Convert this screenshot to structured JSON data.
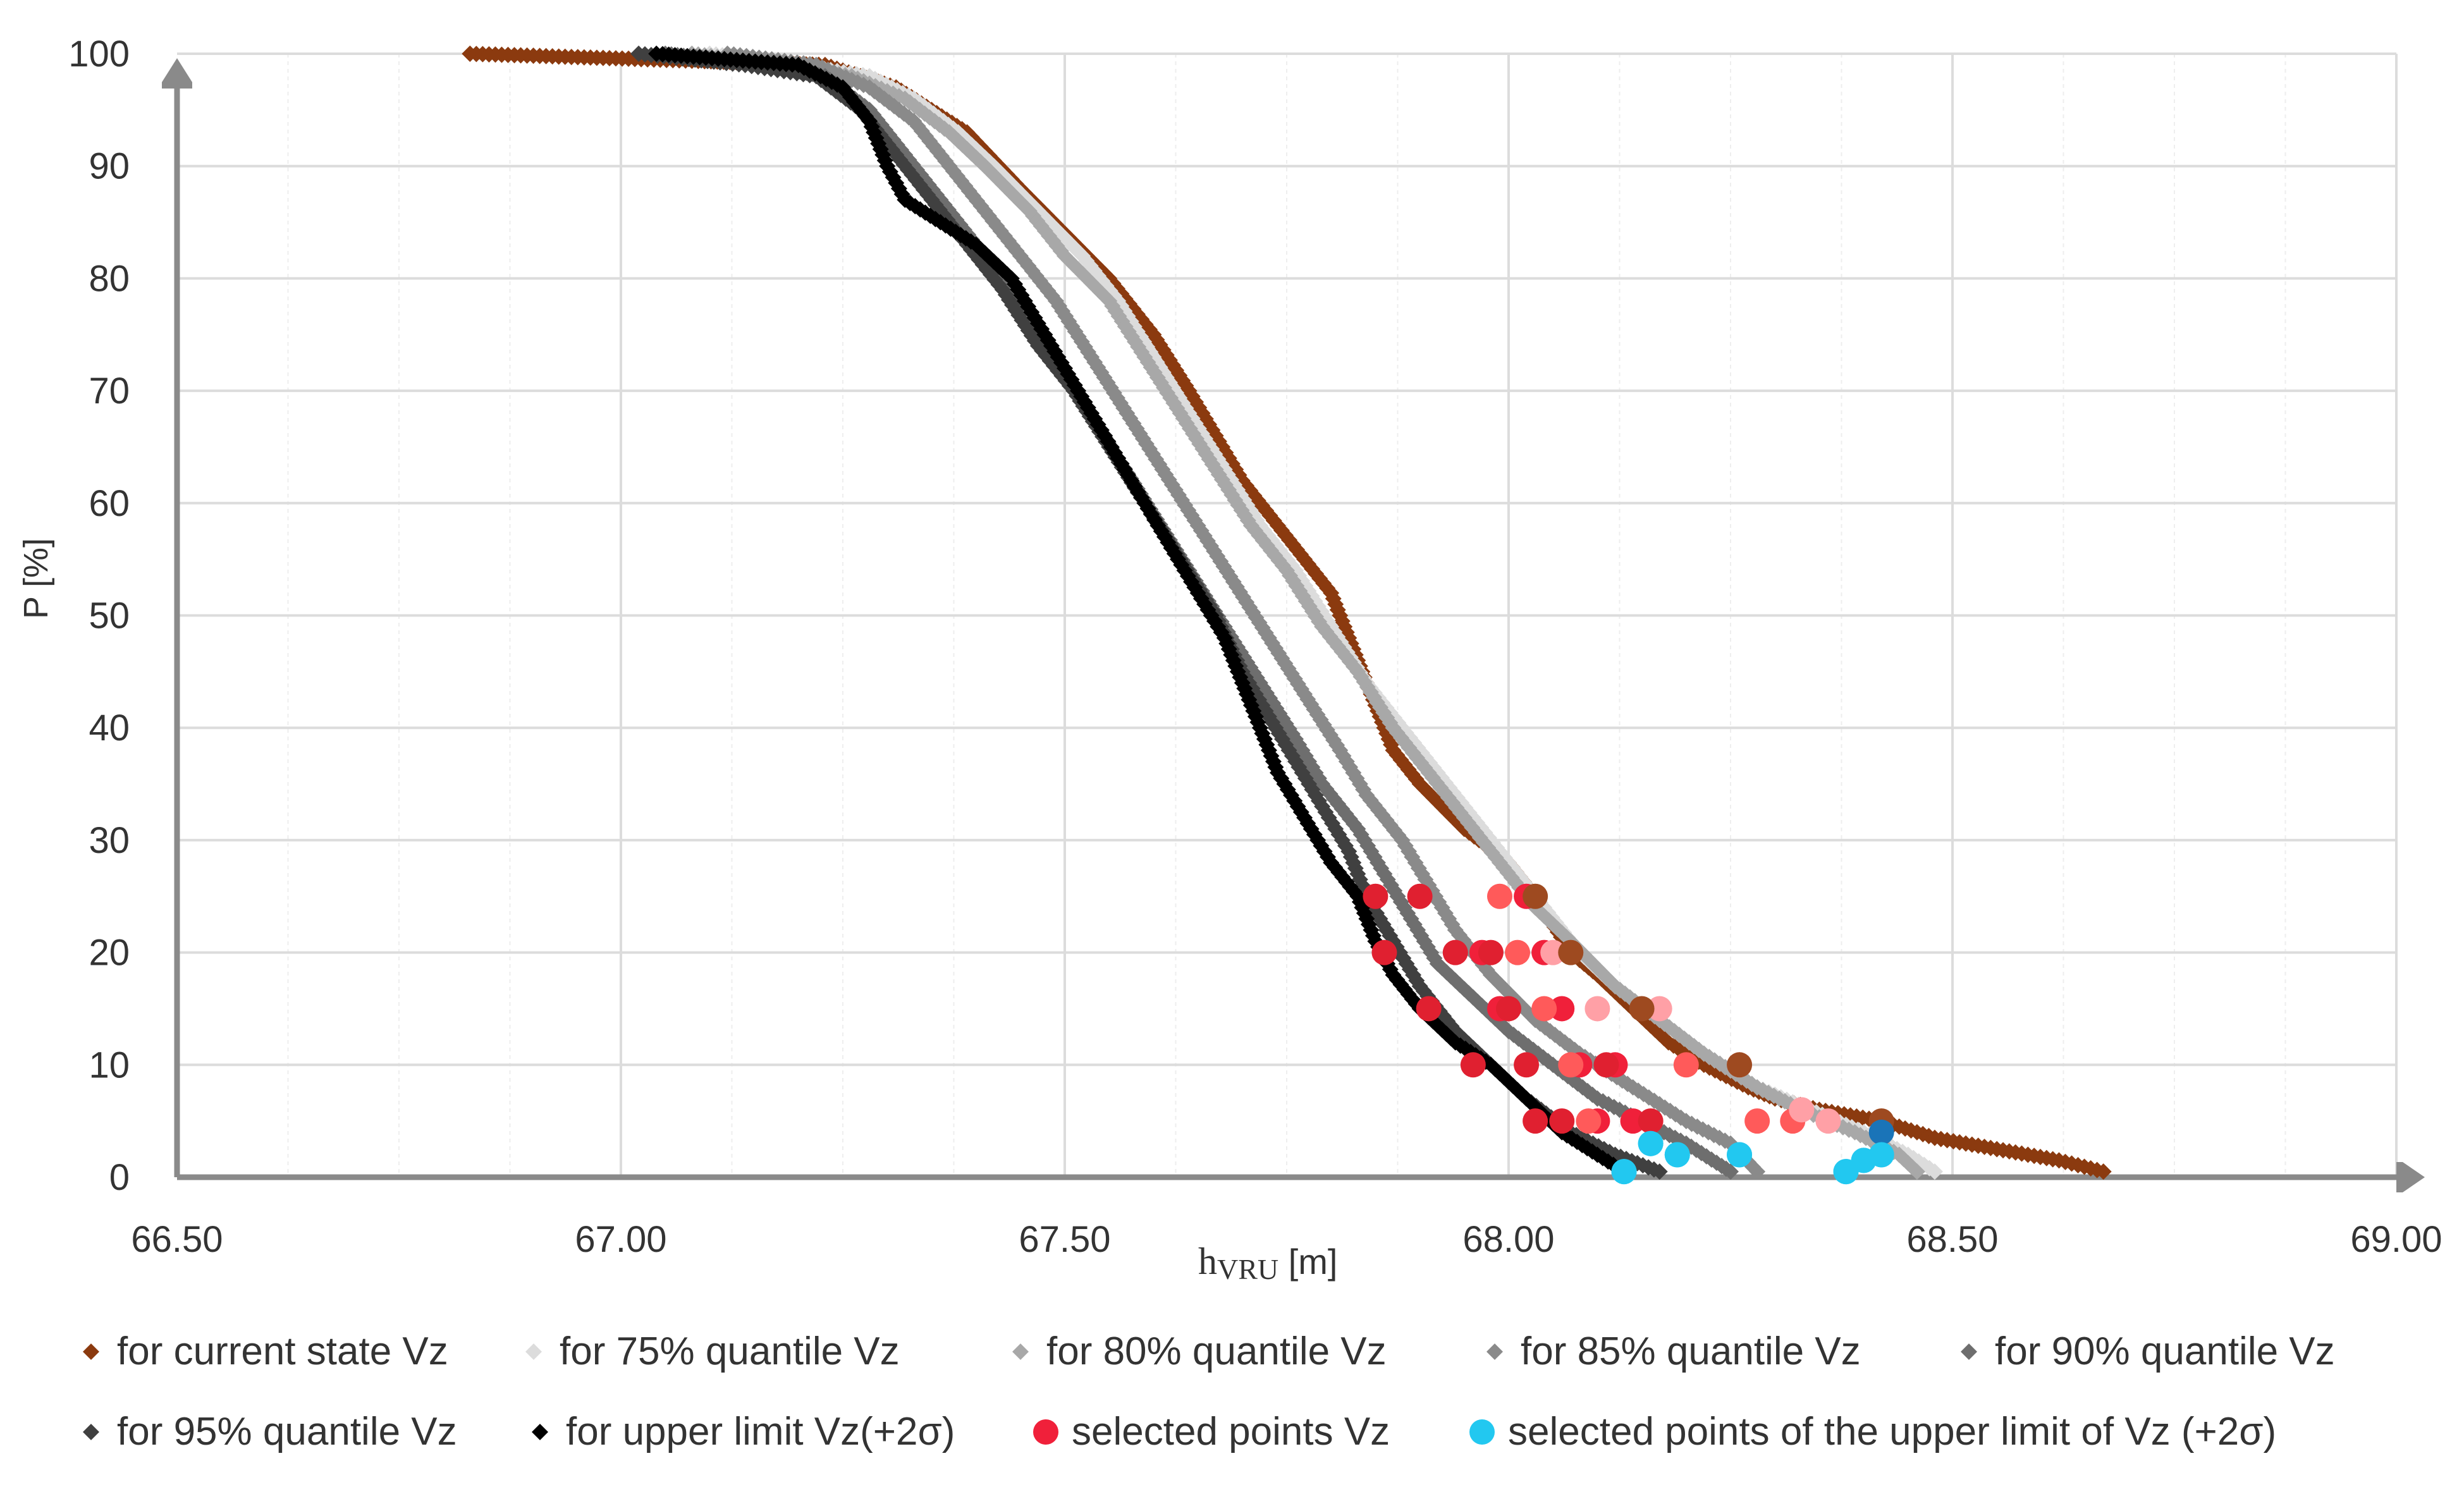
{
  "chart_data": {
    "type": "scatter",
    "title": "",
    "xlabel_main": "h",
    "xlabel_sub": "VRU",
    "xlabel_unit": " [m]",
    "ylabel": "P [%]",
    "xlim": [
      66.5,
      69.0
    ],
    "ylim": [
      0,
      100
    ],
    "x_ticks": [
      66.5,
      67.0,
      67.5,
      68.0,
      68.5,
      69.0
    ],
    "x_tick_labels": [
      "66.50",
      "67.00",
      "67.50",
      "68.00",
      "68.50",
      "69.00"
    ],
    "y_ticks": [
      0,
      10,
      20,
      30,
      40,
      50,
      60,
      70,
      80,
      90,
      100
    ],
    "y_tick_labels": [
      "0",
      "10",
      "20",
      "30",
      "40",
      "50",
      "60",
      "70",
      "80",
      "90",
      "100"
    ],
    "grid": true,
    "legend_position": "bottom",
    "series": [
      {
        "name": "for current state Vz",
        "color": "#8B3A0F",
        "marker": "diamond",
        "points": [
          [
            66.83,
            100
          ],
          [
            67.23,
            99
          ],
          [
            67.27,
            98
          ],
          [
            67.31,
            97
          ],
          [
            67.35,
            95
          ],
          [
            67.39,
            93
          ],
          [
            67.45,
            88
          ],
          [
            67.5,
            84
          ],
          [
            67.55,
            80
          ],
          [
            67.6,
            75
          ],
          [
            67.64,
            70
          ],
          [
            67.67,
            66
          ],
          [
            67.7,
            62
          ],
          [
            67.74,
            58
          ],
          [
            67.77,
            55
          ],
          [
            67.8,
            52
          ],
          [
            67.81,
            50
          ],
          [
            67.83,
            46
          ],
          [
            67.85,
            42
          ],
          [
            67.87,
            38
          ],
          [
            67.9,
            35
          ],
          [
            67.95,
            31
          ],
          [
            68.0,
            28
          ],
          [
            68.03,
            25
          ],
          [
            68.07,
            20
          ],
          [
            68.1,
            18
          ],
          [
            68.14,
            15
          ],
          [
            68.18,
            12
          ],
          [
            68.22,
            10
          ],
          [
            68.27,
            8
          ],
          [
            68.3,
            7
          ],
          [
            68.35,
            6
          ],
          [
            68.42,
            5
          ],
          [
            68.48,
            3.5
          ],
          [
            68.55,
            2.5
          ],
          [
            68.62,
            1.5
          ],
          [
            68.67,
            0.5
          ]
        ]
      },
      {
        "name": "for 75% quantile Vz",
        "color": "#DCDCDC",
        "marker": "diamond",
        "points": [
          [
            67.1,
            100
          ],
          [
            67.2,
            99
          ],
          [
            67.28,
            98
          ],
          [
            67.33,
            96
          ],
          [
            67.38,
            93
          ],
          [
            67.42,
            90
          ],
          [
            67.47,
            86
          ],
          [
            67.52,
            82
          ],
          [
            67.56,
            78
          ],
          [
            67.6,
            73
          ],
          [
            67.64,
            68
          ],
          [
            67.68,
            63
          ],
          [
            67.72,
            58
          ],
          [
            67.76,
            54
          ],
          [
            67.8,
            49
          ],
          [
            67.84,
            44
          ],
          [
            67.88,
            40
          ],
          [
            67.92,
            36
          ],
          [
            67.96,
            32
          ],
          [
            68.0,
            28
          ],
          [
            68.04,
            24
          ],
          [
            68.08,
            20
          ],
          [
            68.12,
            17
          ],
          [
            68.17,
            14
          ],
          [
            68.22,
            11
          ],
          [
            68.28,
            8
          ],
          [
            68.34,
            6
          ],
          [
            68.4,
            4
          ],
          [
            68.45,
            2
          ],
          [
            68.48,
            0.5
          ]
        ]
      },
      {
        "name": "for 80% quantile Vz",
        "color": "#A8A8A8",
        "marker": "diamond",
        "points": [
          [
            67.08,
            100
          ],
          [
            67.18,
            99
          ],
          [
            67.26,
            98
          ],
          [
            67.32,
            96
          ],
          [
            67.37,
            93
          ],
          [
            67.41,
            90
          ],
          [
            67.46,
            86
          ],
          [
            67.5,
            82
          ],
          [
            67.55,
            78
          ],
          [
            67.59,
            73
          ],
          [
            67.63,
            68
          ],
          [
            67.67,
            63
          ],
          [
            67.71,
            58
          ],
          [
            67.75,
            54
          ],
          [
            67.79,
            49
          ],
          [
            67.83,
            45
          ],
          [
            67.87,
            40
          ],
          [
            67.91,
            36
          ],
          [
            67.95,
            32
          ],
          [
            67.99,
            28
          ],
          [
            68.03,
            24
          ],
          [
            68.07,
            21
          ],
          [
            68.12,
            17
          ],
          [
            68.17,
            14
          ],
          [
            68.22,
            11
          ],
          [
            68.28,
            8
          ],
          [
            68.33,
            6
          ],
          [
            68.39,
            4
          ],
          [
            68.44,
            2
          ],
          [
            68.46,
            0.5
          ]
        ]
      },
      {
        "name": "for 85% quantile Vz",
        "color": "#8A8A8A",
        "marker": "diamond",
        "points": [
          [
            67.12,
            100
          ],
          [
            67.22,
            99
          ],
          [
            67.28,
            97
          ],
          [
            67.33,
            94
          ],
          [
            67.37,
            90
          ],
          [
            67.41,
            86
          ],
          [
            67.45,
            82
          ],
          [
            67.49,
            78
          ],
          [
            67.53,
            73
          ],
          [
            67.57,
            68
          ],
          [
            67.61,
            63
          ],
          [
            67.65,
            58
          ],
          [
            67.69,
            53
          ],
          [
            67.73,
            48
          ],
          [
            67.77,
            43
          ],
          [
            67.81,
            38
          ],
          [
            67.84,
            34
          ],
          [
            67.88,
            30
          ],
          [
            67.91,
            26
          ],
          [
            67.94,
            22
          ],
          [
            67.98,
            18
          ],
          [
            68.03,
            14
          ],
          [
            68.08,
            11
          ],
          [
            68.14,
            8
          ],
          [
            68.2,
            5
          ],
          [
            68.25,
            3
          ],
          [
            68.28,
            0.5
          ]
        ]
      },
      {
        "name": "for 90% quantile Vz",
        "color": "#6E6E6E",
        "marker": "diamond",
        "points": [
          [
            67.05,
            100
          ],
          [
            67.16,
            99
          ],
          [
            67.23,
            98
          ],
          [
            67.28,
            95
          ],
          [
            67.32,
            91
          ],
          [
            67.36,
            87
          ],
          [
            67.4,
            83
          ],
          [
            67.44,
            78
          ],
          [
            67.48,
            74
          ],
          [
            67.52,
            69
          ],
          [
            67.56,
            64
          ],
          [
            67.6,
            59
          ],
          [
            67.64,
            54
          ],
          [
            67.68,
            49
          ],
          [
            67.72,
            44
          ],
          [
            67.76,
            39
          ],
          [
            67.79,
            35
          ],
          [
            67.83,
            31
          ],
          [
            67.86,
            27
          ],
          [
            67.89,
            23
          ],
          [
            67.92,
            19
          ],
          [
            67.96,
            16
          ],
          [
            68.0,
            13
          ],
          [
            68.05,
            10
          ],
          [
            68.1,
            7
          ],
          [
            68.15,
            5
          ],
          [
            68.2,
            3
          ],
          [
            68.24,
            1
          ],
          [
            68.25,
            0.5
          ]
        ]
      },
      {
        "name": "for 95% quantile Vz",
        "color": "#404040",
        "marker": "diamond",
        "points": [
          [
            67.02,
            100
          ],
          [
            67.14,
            99
          ],
          [
            67.22,
            98
          ],
          [
            67.27,
            95
          ],
          [
            67.31,
            91
          ],
          [
            67.35,
            87
          ],
          [
            67.39,
            83
          ],
          [
            67.43,
            79
          ],
          [
            67.47,
            74
          ],
          [
            67.51,
            70
          ],
          [
            67.55,
            65
          ],
          [
            67.59,
            60
          ],
          [
            67.63,
            55
          ],
          [
            67.67,
            50
          ],
          [
            67.7,
            45
          ],
          [
            67.73,
            41
          ],
          [
            67.76,
            37
          ],
          [
            67.79,
            33
          ],
          [
            67.82,
            29
          ],
          [
            67.84,
            25
          ],
          [
            67.87,
            21
          ],
          [
            67.9,
            17
          ],
          [
            67.94,
            13
          ],
          [
            67.98,
            10
          ],
          [
            68.02,
            7
          ],
          [
            68.07,
            4
          ],
          [
            68.12,
            2
          ],
          [
            68.17,
            0.5
          ]
        ]
      },
      {
        "name": "for upper limit Vz(+2σ)",
        "color": "#000000",
        "marker": "diamond",
        "points": [
          [
            67.04,
            100
          ],
          [
            67.2,
            99
          ],
          [
            67.25,
            97
          ],
          [
            67.28,
            94
          ],
          [
            67.3,
            90
          ],
          [
            67.32,
            87
          ],
          [
            67.36,
            85
          ],
          [
            67.4,
            83
          ],
          [
            67.44,
            80
          ],
          [
            67.47,
            76
          ],
          [
            67.5,
            72
          ],
          [
            67.53,
            68
          ],
          [
            67.56,
            64
          ],
          [
            67.59,
            60
          ],
          [
            67.62,
            56
          ],
          [
            67.65,
            52
          ],
          [
            67.68,
            48
          ],
          [
            67.7,
            44
          ],
          [
            67.72,
            40
          ],
          [
            67.74,
            36
          ],
          [
            67.77,
            32
          ],
          [
            67.8,
            28
          ],
          [
            67.83,
            25
          ],
          [
            67.85,
            21
          ],
          [
            67.87,
            18
          ],
          [
            67.9,
            15
          ],
          [
            67.94,
            12
          ],
          [
            67.98,
            10
          ],
          [
            68.02,
            7
          ],
          [
            68.06,
            4
          ],
          [
            68.1,
            2
          ],
          [
            68.13,
            0.5
          ]
        ]
      },
      {
        "name": "selected points Vz",
        "color": "#F0203A",
        "marker": "circle",
        "points": [
          [
            68.02,
            25
          ],
          [
            68.04,
            20
          ],
          [
            68.06,
            15
          ],
          [
            68.08,
            10
          ],
          [
            68.1,
            5
          ],
          [
            67.97,
            20
          ],
          [
            67.99,
            15
          ],
          [
            68.12,
            10
          ],
          [
            68.14,
            5
          ]
        ]
      },
      {
        "name": "selected points of the upper limit of Vz (+2σ)",
        "color": "#22C8F0",
        "marker": "circle",
        "points": [
          [
            68.13,
            0.5
          ],
          [
            68.16,
            3
          ],
          [
            68.19,
            2
          ],
          [
            68.26,
            2
          ],
          [
            68.38,
            0.5
          ],
          [
            68.4,
            1.5
          ],
          [
            68.42,
            2
          ]
        ]
      }
    ],
    "highlight_points": [
      {
        "color": "#E02030",
        "points": [
          [
            67.85,
            25
          ],
          [
            67.86,
            20
          ],
          [
            67.91,
            15
          ],
          [
            67.96,
            10
          ],
          [
            68.03,
            5
          ],
          [
            67.9,
            25
          ],
          [
            67.94,
            20
          ],
          [
            67.98,
            20
          ],
          [
            68.0,
            15
          ],
          [
            68.02,
            10
          ],
          [
            68.06,
            5
          ],
          [
            68.11,
            10
          ],
          [
            68.16,
            5
          ]
        ]
      },
      {
        "color": "#FF5A5A",
        "points": [
          [
            67.99,
            25
          ],
          [
            68.01,
            20
          ],
          [
            68.04,
            15
          ],
          [
            68.07,
            10
          ],
          [
            68.09,
            5
          ],
          [
            68.2,
            10
          ],
          [
            68.28,
            5
          ],
          [
            68.32,
            5
          ]
        ]
      },
      {
        "color": "#FFA0A6",
        "points": [
          [
            68.05,
            20
          ],
          [
            68.1,
            15
          ],
          [
            68.17,
            15
          ],
          [
            68.26,
            10
          ],
          [
            68.33,
            6
          ],
          [
            68.36,
            5
          ]
        ]
      },
      {
        "color": "#9E4A20",
        "points": [
          [
            68.03,
            25
          ],
          [
            68.07,
            20
          ],
          [
            68.15,
            15
          ],
          [
            68.26,
            10
          ],
          [
            68.42,
            5
          ]
        ]
      },
      {
        "color": "#1A74B8",
        "points": [
          [
            68.42,
            4
          ]
        ]
      }
    ]
  }
}
